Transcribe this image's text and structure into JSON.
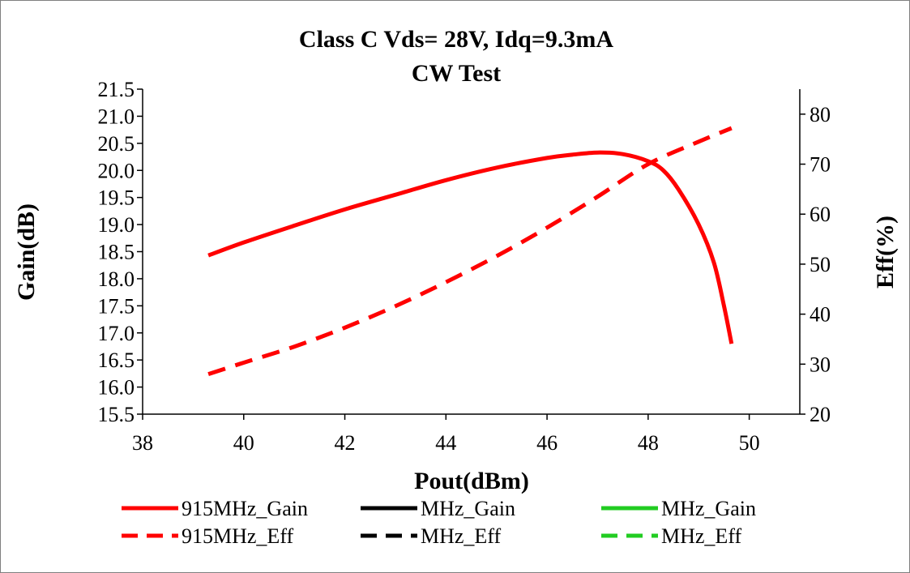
{
  "chart_data": {
    "type": "line",
    "title": "Class C Vds= 28V, Idq=9.3mA",
    "subtitle": "CW Test",
    "xlabel": "Pout(dBm)",
    "ylabel": "Gain(dB)",
    "y2label": "Eff(%)",
    "xlim": [
      38,
      51
    ],
    "ylim": [
      15.5,
      21.5
    ],
    "y2lim": [
      20,
      85
    ],
    "xticks": [
      "38",
      "40",
      "42",
      "44",
      "46",
      "48",
      "50"
    ],
    "yticks": [
      "15.5",
      "16.0",
      "16.5",
      "17.0",
      "17.5",
      "18.0",
      "18.5",
      "19.0",
      "19.5",
      "20.0",
      "20.5",
      "21.0",
      "21.5"
    ],
    "y2ticks": [
      "20",
      "30",
      "40",
      "50",
      "60",
      "70",
      "80"
    ],
    "grid": false,
    "legend_position": "bottom",
    "series": [
      {
        "name": "915MHz_Gain",
        "axis": "left",
        "dash": "solid",
        "color": "#ff0000",
        "x": [
          39.3,
          40.0,
          41.0,
          42.0,
          43.0,
          44.0,
          45.0,
          46.0,
          46.5,
          47.0,
          47.5,
          48.0,
          48.3,
          48.6,
          49.0,
          49.3,
          49.5,
          49.65
        ],
        "y": [
          18.43,
          18.67,
          18.98,
          19.28,
          19.55,
          19.82,
          20.05,
          20.23,
          20.29,
          20.33,
          20.3,
          20.17,
          20.0,
          19.65,
          19.0,
          18.3,
          17.5,
          16.8
        ]
      },
      {
        "name": "MHz_Gain",
        "axis": "left",
        "dash": "solid",
        "color": "#000000",
        "x": [],
        "y": []
      },
      {
        "name": "MHz_Gain",
        "axis": "left",
        "dash": "solid",
        "color": "#22cc22",
        "x": [],
        "y": []
      },
      {
        "name": "915MHz_Eff",
        "axis": "right",
        "dash": "dash",
        "color": "#ff0000",
        "x": [
          39.3,
          40.0,
          41.0,
          42.0,
          43.0,
          44.0,
          45.0,
          46.0,
          47.0,
          48.0,
          49.0,
          49.65
        ],
        "y": [
          28,
          30.3,
          33.5,
          37.3,
          41.6,
          46.4,
          51.6,
          57.3,
          63.5,
          70.0,
          74.5,
          77.2
        ]
      },
      {
        "name": "MHz_Eff",
        "axis": "right",
        "dash": "dash",
        "color": "#000000",
        "x": [],
        "y": []
      },
      {
        "name": "MHz_Eff",
        "axis": "right",
        "dash": "dash",
        "color": "#22cc22",
        "x": [],
        "y": []
      }
    ]
  }
}
